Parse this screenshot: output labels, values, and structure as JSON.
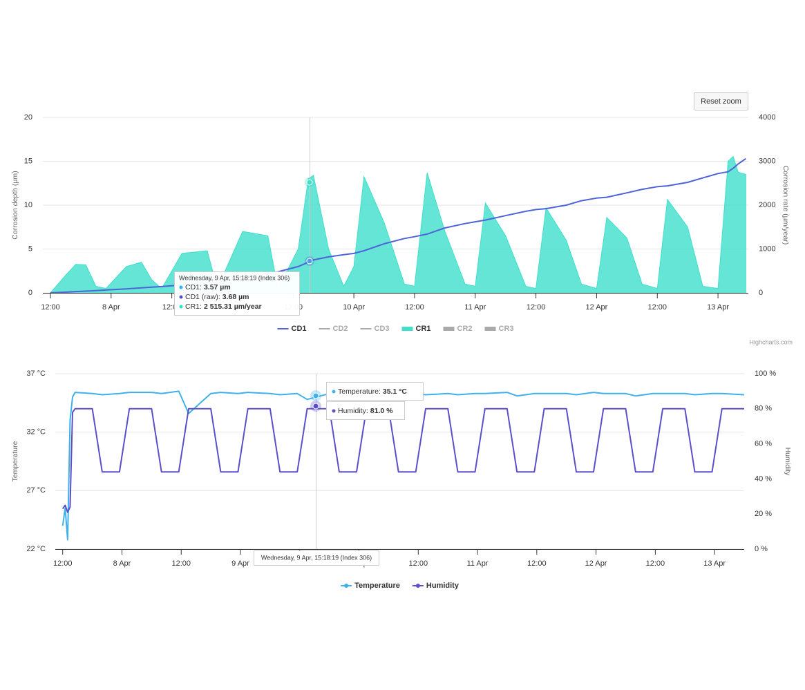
{
  "reset_zoom": "Reset zoom",
  "credits": "Highcharts.com",
  "chart_data": [
    {
      "type": "combo",
      "ylabel": "Corrosion depth (µm)",
      "y2label": "Corrosion rate (µm/year)",
      "xlim": [
        "7 Apr 10:30",
        "13 Apr 06:00"
      ],
      "xticks": [
        {
          "value": "7 Apr 12:00",
          "label": "12:00"
        },
        {
          "value": "8 Apr 00:00",
          "label": "8 Apr"
        },
        {
          "value": "8 Apr 12:00",
          "label": "12:00"
        },
        {
          "value": "9 Apr 00:00",
          "label": "9 Apr"
        },
        {
          "value": "9 Apr 12:00",
          "label": "12:00"
        },
        {
          "value": "10 Apr 00:00",
          "label": "10 Apr"
        },
        {
          "value": "10 Apr 12:00",
          "label": "12:00"
        },
        {
          "value": "11 Apr 00:00",
          "label": "11 Apr"
        },
        {
          "value": "11 Apr 12:00",
          "label": "12:00"
        },
        {
          "value": "12 Apr 00:00",
          "label": "12 Apr"
        },
        {
          "value": "12 Apr 12:00",
          "label": "12:00"
        },
        {
          "value": "13 Apr 00:00",
          "label": "13 Apr"
        }
      ],
      "ylim": [
        0,
        20
      ],
      "yticks": [
        0,
        5,
        10,
        15,
        20
      ],
      "y2lim": [
        0,
        4000
      ],
      "y2ticks": [
        0,
        1000,
        2000,
        3000,
        4000
      ],
      "grid": true,
      "x": [
        "7 Apr 12:00",
        "7 Apr 15:00",
        "7 Apr 17:00",
        "7 Apr 19:00",
        "7 Apr 21:00",
        "7 Apr 23:00",
        "8 Apr 03:00",
        "8 Apr 06:00",
        "8 Apr 08:00",
        "8 Apr 10:00",
        "8 Apr 14:00",
        "8 Apr 19:00",
        "8 Apr 21:00",
        "9 Apr 02:00",
        "9 Apr 07:00",
        "9 Apr 09:00",
        "9 Apr 13:00",
        "9 Apr 15:00",
        "9 Apr 16:00",
        "9 Apr 19:00",
        "9 Apr 22:00",
        "10 Apr 00:00",
        "10 Apr 02:00",
        "10 Apr 06:00",
        "10 Apr 10:00",
        "10 Apr 12:00",
        "10 Apr 14:30",
        "10 Apr 18:00",
        "10 Apr 22:00",
        "11 Apr 00:00",
        "11 Apr 02:00",
        "11 Apr 06:00",
        "11 Apr 10:00",
        "11 Apr 12:00",
        "11 Apr 14:00",
        "11 Apr 18:00",
        "11 Apr 21:00",
        "12 Apr 00:00",
        "12 Apr 02:00",
        "12 Apr 06:00",
        "12 Apr 09:00",
        "12 Apr 12:00",
        "12 Apr 14:00",
        "12 Apr 18:00",
        "12 Apr 21:00",
        "13 Apr 00:00",
        "13 Apr 02:00",
        "13 Apr 03:00",
        "13 Apr 04:00",
        "13 Apr 05:30"
      ],
      "series": [
        {
          "name": "CD1",
          "kind": "line",
          "color": "#4f63d9",
          "visible": true,
          "values": [
            0,
            0.08,
            0.15,
            0.2,
            0.26,
            0.32,
            0.45,
            0.57,
            0.65,
            0.72,
            0.9,
            1.15,
            1.25,
            1.6,
            2.2,
            2.4,
            3.0,
            3.5,
            3.75,
            4.1,
            4.35,
            4.5,
            4.8,
            5.6,
            6.2,
            6.4,
            6.7,
            7.4,
            7.9,
            8.1,
            8.3,
            8.8,
            9.3,
            9.5,
            9.6,
            10.0,
            10.5,
            10.8,
            10.9,
            11.4,
            11.8,
            12.1,
            12.2,
            12.6,
            13.1,
            13.6,
            13.8,
            14.2,
            14.7,
            15.3
          ]
        },
        {
          "name": "CD2",
          "kind": "line",
          "visible": false
        },
        {
          "name": "CD3",
          "kind": "line",
          "visible": false
        },
        {
          "name": "CR1",
          "kind": "area",
          "axis": "y2",
          "color": "#3fdfca",
          "visible": true,
          "values": [
            0,
            400,
            650,
            640,
            150,
            100,
            600,
            700,
            300,
            100,
            900,
            960,
            100,
            1400,
            1300,
            100,
            1000,
            2600,
            2680,
            1000,
            150,
            600,
            2650,
            1600,
            200,
            150,
            2740,
            1400,
            200,
            150,
            2050,
            1300,
            150,
            100,
            1940,
            1200,
            200,
            100,
            1720,
            1250,
            200,
            100,
            2130,
            1500,
            150,
            100,
            3000,
            3110,
            2750,
            2700
          ]
        },
        {
          "name": "CR2",
          "kind": "area",
          "visible": false
        },
        {
          "name": "CR3",
          "kind": "area",
          "visible": false
        }
      ],
      "tooltip": {
        "header": "Wednesday, 9 Apr, 15:18:19 (Index 306)",
        "rows": [
          {
            "label": "CD1:",
            "value": "3.57 µm",
            "color": "#2caffe"
          },
          {
            "label": "CD1 (raw):",
            "value": "3.68 µm",
            "color": "#544fc5"
          },
          {
            "label": "CR1:",
            "value": "2 515.31 µm/year",
            "color": "#2ee0ca"
          }
        ]
      }
    },
    {
      "type": "line",
      "ylabel": "Temperature",
      "y2label": "Humidity",
      "xlim": [
        "7 Apr 10:30",
        "13 Apr 06:00"
      ],
      "xticks": [
        {
          "value": "7 Apr 12:00",
          "label": "12:00"
        },
        {
          "value": "8 Apr 00:00",
          "label": "8 Apr"
        },
        {
          "value": "8 Apr 12:00",
          "label": "12:00"
        },
        {
          "value": "9 Apr 00:00",
          "label": "9 Apr"
        },
        {
          "value": "9 Apr 12:00",
          "label": "12:00"
        },
        {
          "value": "10 Apr 00:00",
          "label": "10 Apr"
        },
        {
          "value": "10 Apr 12:00",
          "label": "12:00"
        },
        {
          "value": "11 Apr 00:00",
          "label": "11 Apr"
        },
        {
          "value": "11 Apr 12:00",
          "label": "12:00"
        },
        {
          "value": "12 Apr 00:00",
          "label": "12 Apr"
        },
        {
          "value": "12 Apr 12:00",
          "label": "12:00"
        },
        {
          "value": "13 Apr 00:00",
          "label": "13 Apr"
        }
      ],
      "ylim": [
        22,
        37
      ],
      "yticks": [
        {
          "value": 22,
          "label": "22 °C"
        },
        {
          "value": 27,
          "label": "27 °C"
        },
        {
          "value": 32,
          "label": "32 °C"
        },
        {
          "value": 37,
          "label": "37 °C"
        }
      ],
      "y2lim": [
        0,
        100
      ],
      "y2ticks": [
        {
          "value": 0,
          "label": "0 %"
        },
        {
          "value": 20,
          "label": "20 %"
        },
        {
          "value": 40,
          "label": "40 %"
        },
        {
          "value": 60,
          "label": "60 %"
        },
        {
          "value": 80,
          "label": "80 %"
        },
        {
          "value": 100,
          "label": "100 %"
        }
      ],
      "grid": true,
      "x": [
        "7 Apr 12:00",
        "7 Apr 12:30",
        "7 Apr 13:00",
        "7 Apr 13:30",
        "7 Apr 14:00",
        "7 Apr 14:30",
        "7 Apr 18:00",
        "7 Apr 20:00",
        "7 Apr 23:30",
        "8 Apr 01:30",
        "8 Apr 06:00",
        "8 Apr 08:00",
        "8 Apr 11:30",
        "8 Apr 13:30",
        "8 Apr 18:00",
        "8 Apr 20:00",
        "8 Apr 23:30",
        "9 Apr 01:30",
        "9 Apr 06:00",
        "9 Apr 08:00",
        "9 Apr 11:30",
        "9 Apr 13:30",
        "9 Apr 18:00",
        "9 Apr 20:00",
        "9 Apr 23:30",
        "10 Apr 01:30",
        "10 Apr 06:00",
        "10 Apr 08:00",
        "10 Apr 11:30",
        "10 Apr 13:30",
        "10 Apr 18:00",
        "10 Apr 20:00",
        "10 Apr 23:30",
        "11 Apr 01:30",
        "11 Apr 06:00",
        "11 Apr 08:00",
        "11 Apr 11:30",
        "11 Apr 13:30",
        "11 Apr 18:00",
        "11 Apr 20:00",
        "11 Apr 23:30",
        "12 Apr 01:30",
        "12 Apr 06:00",
        "12 Apr 08:00",
        "12 Apr 11:30",
        "12 Apr 13:30",
        "12 Apr 18:00",
        "12 Apr 20:00",
        "12 Apr 23:30",
        "13 Apr 01:30",
        "13 Apr 06:00"
      ],
      "series": [
        {
          "name": "Temperature",
          "kind": "line",
          "marker": true,
          "color": "#3fb1ea",
          "visible": true,
          "values": [
            24.0,
            25.5,
            22.8,
            33.0,
            35.0,
            35.4,
            35.3,
            35.2,
            35.3,
            35.4,
            35.4,
            35.3,
            35.5,
            33.6,
            35.3,
            35.4,
            35.3,
            35.4,
            35.3,
            35.2,
            35.3,
            34.8,
            35.3,
            35.2,
            35.4,
            35.3,
            35.3,
            35.4,
            35.3,
            35.2,
            35.3,
            35.2,
            35.3,
            35.3,
            35.4,
            35.1,
            35.3,
            35.3,
            35.3,
            35.2,
            35.4,
            35.3,
            35.3,
            35.1,
            35.3,
            35.3,
            35.3,
            35.2,
            35.3,
            35.3,
            35.2
          ]
        },
        {
          "name": "Humidity",
          "kind": "line",
          "marker": true,
          "axis": "y2",
          "color": "#5a4fc8",
          "visible": true,
          "values": [
            23,
            25,
            21,
            24,
            78,
            80,
            80,
            44,
            44,
            80,
            80,
            44,
            44,
            80,
            80,
            44,
            44,
            80,
            80,
            44,
            44,
            80,
            80,
            44,
            44,
            80,
            80,
            44,
            44,
            80,
            80,
            44,
            44,
            80,
            80,
            44,
            44,
            80,
            80,
            44,
            44,
            80,
            80,
            44,
            44,
            80,
            80,
            44,
            44,
            80,
            80
          ]
        }
      ],
      "tooltip": {
        "header": "Wednesday, 9 Apr, 15:18:19 (Index 306)",
        "rows": [
          {
            "label": "Temperature:",
            "value": "35.1 °C",
            "color": "#3fb1ea"
          },
          {
            "label": "Humidity:",
            "value": "81.0 %",
            "color": "#5a4fc8"
          }
        ]
      }
    }
  ]
}
